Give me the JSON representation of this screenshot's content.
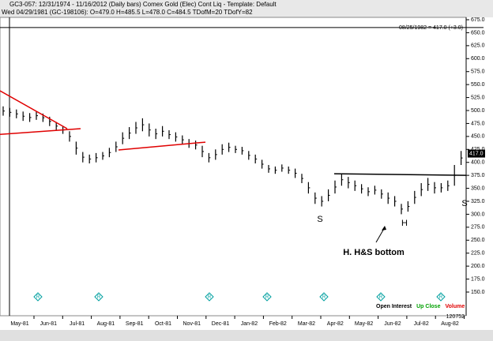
{
  "header": {
    "line1": "GC3-057:  12/31/1974 - 11/16/2012  (Daily bars)   Comex Gold (Elec) Cont Liq  - Template: Default",
    "line2": "Wed 04/29/1981 (GC-198106):  O=479.0 H=485.5 L=478.0 C=484.5 TDofM=20 TDofY=82"
  },
  "chart_data": {
    "type": "range-bar",
    "color": "#000000",
    "low": [
      490,
      488,
      485,
      480,
      478,
      482,
      478,
      470,
      462,
      455,
      440,
      415,
      400,
      398,
      400,
      405,
      410,
      420,
      435,
      445,
      455,
      460,
      450,
      445,
      450,
      445,
      440,
      435,
      428,
      425,
      410,
      400,
      405,
      415,
      420,
      418,
      415,
      405,
      398,
      388,
      380,
      378,
      382,
      378,
      370,
      360,
      340,
      320,
      315,
      325,
      340,
      355,
      350,
      345,
      340,
      335,
      338,
      330,
      320,
      315,
      300,
      305,
      320,
      335,
      345,
      340,
      342,
      345,
      355,
      395
    ],
    "high": [
      508,
      505,
      502,
      498,
      495,
      498,
      494,
      488,
      478,
      470,
      460,
      440,
      420,
      415,
      418,
      420,
      428,
      440,
      458,
      468,
      478,
      485,
      475,
      465,
      470,
      462,
      458,
      452,
      445,
      442,
      432,
      418,
      425,
      435,
      438,
      432,
      430,
      422,
      415,
      405,
      395,
      392,
      396,
      392,
      388,
      378,
      362,
      342,
      335,
      348,
      365,
      378,
      372,
      365,
      358,
      352,
      355,
      348,
      342,
      335,
      320,
      325,
      345,
      360,
      370,
      362,
      360,
      365,
      395,
      422
    ],
    "ylim": [
      150,
      675
    ],
    "yticks": [
      {
        "value": 675,
        "label": "675.0"
      },
      {
        "value": 650,
        "label": "650.0"
      },
      {
        "value": 625,
        "label": "625.0"
      },
      {
        "value": 600,
        "label": "600.0"
      },
      {
        "value": 575,
        "label": "575.0"
      },
      {
        "value": 550,
        "label": "550.0"
      },
      {
        "value": 525,
        "label": "525.0"
      },
      {
        "value": 500,
        "label": "500.0"
      },
      {
        "value": 475,
        "label": "475.0"
      },
      {
        "value": 450,
        "label": "450.0"
      },
      {
        "value": 425,
        "label": "425.0"
      },
      {
        "value": 400,
        "label": "400.0"
      },
      {
        "value": 375,
        "label": "375.0"
      },
      {
        "value": 350,
        "label": "350.0"
      },
      {
        "value": 325,
        "label": "325.0"
      },
      {
        "value": 300,
        "label": "300.0"
      },
      {
        "value": 275,
        "label": "275.0"
      },
      {
        "value": 250,
        "label": "250.0"
      },
      {
        "value": 225,
        "label": "225.0"
      },
      {
        "value": 200,
        "label": "200.0"
      },
      {
        "value": 175,
        "label": "175.0"
      },
      {
        "value": 150,
        "label": "150.0"
      }
    ],
    "x_labels": [
      "May-81",
      "Jun-81",
      "Jul-81",
      "Aug-81",
      "Sep-81",
      "Oct-81",
      "Nov-81",
      "Dec-81",
      "Jan-82",
      "Feb-82",
      "Mar-82",
      "Apr-82",
      "May-82",
      "Jun-82",
      "Jul-82",
      "Aug-82"
    ],
    "lines": [
      {
        "color": "#e00000",
        "values": [
          538,
          465
        ]
      },
      {
        "color": "#e00000",
        "values": [
          454,
          465
        ]
      },
      {
        "color": "#e00000",
        "values": [
          424,
          439
        ]
      },
      {
        "color": "#000000",
        "values": [
          378,
          375
        ]
      },
      {
        "color": "#000000",
        "values": [
          660,
          660
        ]
      }
    ],
    "last_price": {
      "value": 417,
      "label": "417.0"
    },
    "last_note": "08/25/1982 = 417.0 (+3.0)",
    "annotations": [
      "S",
      "H",
      "S",
      "H. H&S bottom"
    ],
    "r_markers": [
      "R",
      "R",
      "R",
      "R",
      "R",
      "R",
      "R"
    ],
    "legend": [
      {
        "name": "Open Interest",
        "color": "#000000"
      },
      {
        "name": "Up Close",
        "color": "#00a000"
      },
      {
        "name": "Volume",
        "color": "#e00000"
      }
    ],
    "volume_readout": "120752"
  }
}
